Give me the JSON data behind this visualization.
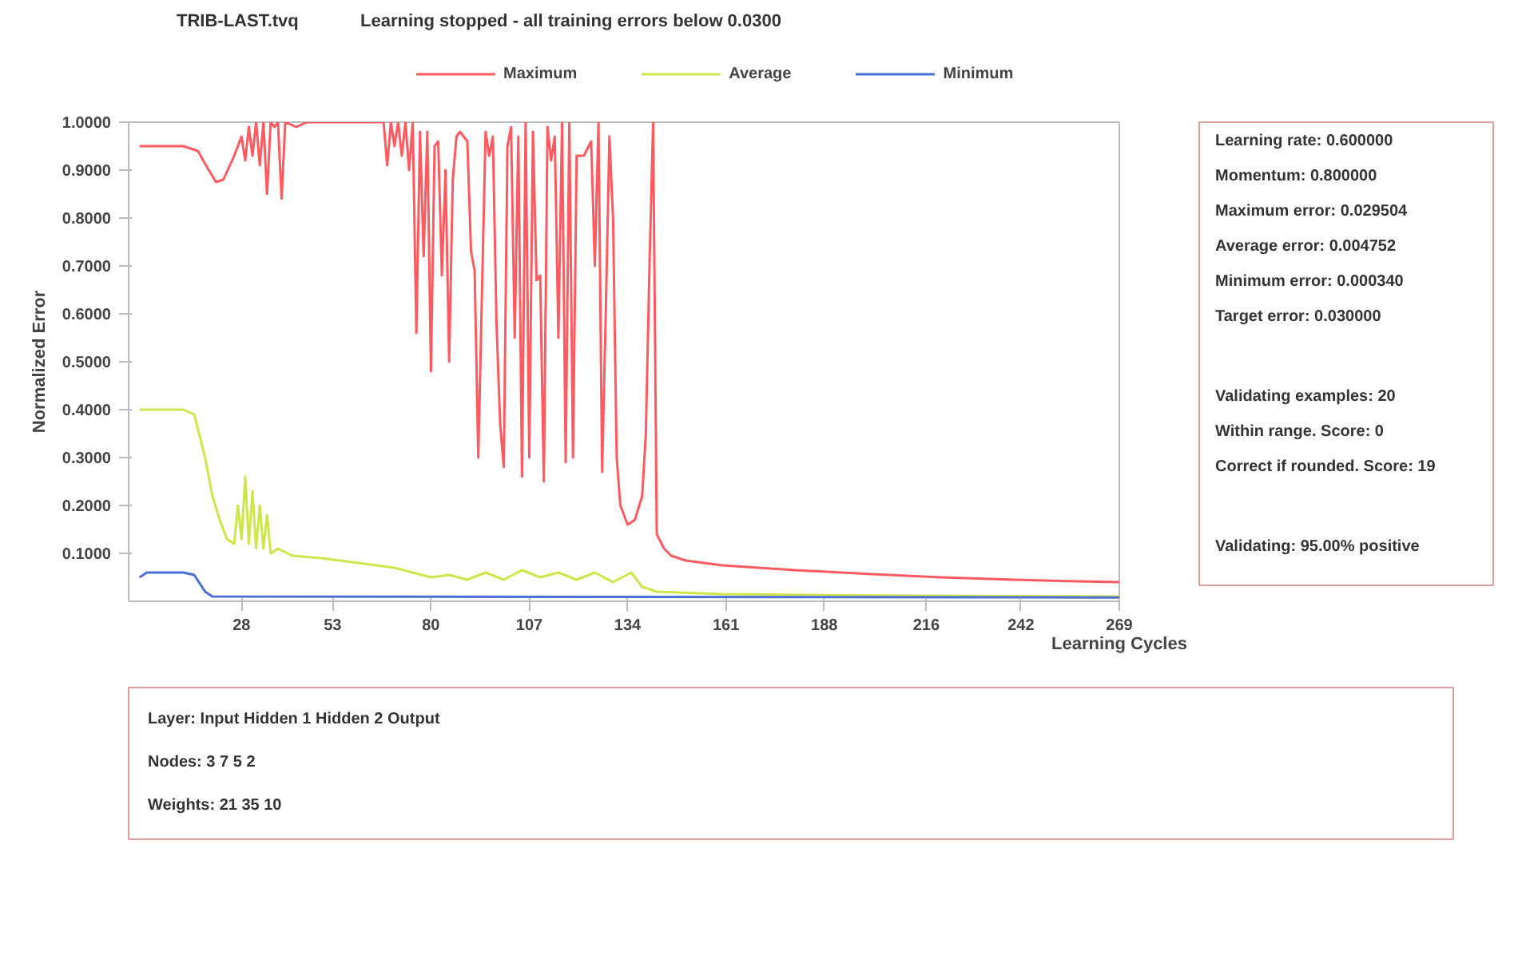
{
  "chart_data": {
    "type": "line",
    "subtitle": "TRIB-LAST.tvq",
    "title": "Learning stopped - all training errors below 0.0300",
    "ylabel": "Normalized Error",
    "xlabel": "Learning Cycles",
    "xlim": [
      -3,
      269
    ],
    "ylim": [
      0,
      1
    ],
    "xticks": [
      28,
      53,
      80,
      107,
      134,
      161,
      188,
      216,
      242,
      269
    ],
    "yticks": [
      {
        "value": 0.1,
        "label": "0.1000"
      },
      {
        "value": 0.2,
        "label": "0.2000"
      },
      {
        "value": 0.3,
        "label": "0.3000"
      },
      {
        "value": 0.4,
        "label": "0.4000"
      },
      {
        "value": 0.5,
        "label": "0.5000"
      },
      {
        "value": 0.6,
        "label": "0.6000"
      },
      {
        "value": 0.7,
        "label": "0.7000"
      },
      {
        "value": 0.8,
        "label": "0.8000"
      },
      {
        "value": 0.9,
        "label": "0.9000"
      },
      {
        "value": 1,
        "label": "1.0000"
      }
    ],
    "legend": "top",
    "series": [
      {
        "name": "Maximum",
        "color": "#ff5a5f",
        "x": [
          0,
          12,
          16,
          19,
          21,
          23,
          26,
          28,
          29,
          30,
          31,
          32,
          33,
          34,
          35,
          36,
          37,
          38,
          39,
          40,
          43,
          46,
          67,
          68,
          69,
          70,
          71,
          72,
          73,
          74,
          75,
          76,
          77,
          78,
          79,
          80,
          81,
          82,
          83,
          84,
          85,
          86,
          87,
          88,
          90,
          91,
          92,
          93,
          95,
          96,
          97,
          98,
          99,
          100,
          101,
          102,
          103,
          104,
          105,
          106,
          107,
          108,
          109,
          110,
          111,
          112,
          113,
          114,
          115,
          116,
          117,
          118,
          119,
          120,
          122,
          124,
          125,
          126,
          127,
          128,
          129,
          130,
          131,
          132,
          134,
          136,
          138,
          139,
          140,
          141,
          142,
          144,
          146,
          150,
          160,
          180,
          200,
          220,
          240,
          255,
          269
        ],
        "values": [
          0.95,
          0.95,
          0.94,
          0.9,
          0.875,
          0.88,
          0.93,
          0.97,
          0.92,
          0.99,
          0.93,
          1.0,
          0.91,
          1.0,
          0.85,
          1.0,
          0.99,
          1.0,
          0.84,
          1.0,
          0.99,
          1.0,
          1.0,
          0.91,
          1.0,
          0.95,
          1.0,
          0.93,
          1.0,
          0.9,
          1.0,
          0.56,
          0.98,
          0.72,
          0.98,
          0.48,
          0.95,
          0.96,
          0.68,
          0.9,
          0.5,
          0.88,
          0.97,
          0.98,
          0.96,
          0.73,
          0.69,
          0.3,
          0.98,
          0.93,
          0.97,
          0.58,
          0.37,
          0.28,
          0.95,
          0.99,
          0.55,
          0.97,
          0.26,
          1.0,
          0.3,
          0.98,
          0.67,
          0.68,
          0.25,
          0.99,
          0.92,
          0.97,
          0.55,
          1.0,
          0.29,
          1.0,
          0.3,
          0.93,
          0.93,
          0.96,
          0.7,
          1.0,
          0.27,
          0.6,
          0.97,
          0.8,
          0.3,
          0.2,
          0.16,
          0.17,
          0.22,
          0.35,
          0.7,
          1.0,
          0.14,
          0.11,
          0.095,
          0.085,
          0.075,
          0.065,
          0.057,
          0.05,
          0.045,
          0.042,
          0.04
        ]
      },
      {
        "name": "Average",
        "color": "#cfe64a",
        "x": [
          0,
          12,
          15,
          18,
          20,
          22,
          24,
          26,
          27,
          28,
          29,
          30,
          31,
          32,
          33,
          34,
          35,
          36,
          38,
          42,
          50,
          60,
          70,
          75,
          80,
          85,
          90,
          95,
          100,
          105,
          110,
          115,
          120,
          125,
          130,
          135,
          138,
          142,
          160,
          200,
          269
        ],
        "values": [
          0.4,
          0.4,
          0.39,
          0.3,
          0.22,
          0.17,
          0.13,
          0.12,
          0.2,
          0.13,
          0.26,
          0.12,
          0.23,
          0.11,
          0.2,
          0.11,
          0.18,
          0.1,
          0.11,
          0.095,
          0.09,
          0.08,
          0.07,
          0.06,
          0.05,
          0.055,
          0.045,
          0.06,
          0.045,
          0.065,
          0.05,
          0.06,
          0.045,
          0.06,
          0.04,
          0.06,
          0.03,
          0.02,
          0.015,
          0.012,
          0.01
        ]
      },
      {
        "name": "Minimum",
        "color": "#4a6fd6",
        "x": [
          0,
          2,
          12,
          15,
          18,
          20,
          269
        ],
        "values": [
          0.05,
          0.06,
          0.06,
          0.055,
          0.02,
          0.01,
          0.008
        ]
      }
    ],
    "annotations": [
      "Learning rate: 0.600000",
      "Momentum: 0.800000",
      "Maximum error: 0.029504",
      "Average error: 0.004752",
      "Minimum error: 0.000340",
      "Target error: 0.030000",
      "Validating examples: 20",
      "Within range. Score: 0",
      "Correct if rounded. Score: 19",
      "Validating: 95.00% positive",
      "Layer: Input Hidden 1 Hidden 2 Output",
      "Nodes: 3 7 5 2",
      "Weights: 21 35 10"
    ]
  }
}
